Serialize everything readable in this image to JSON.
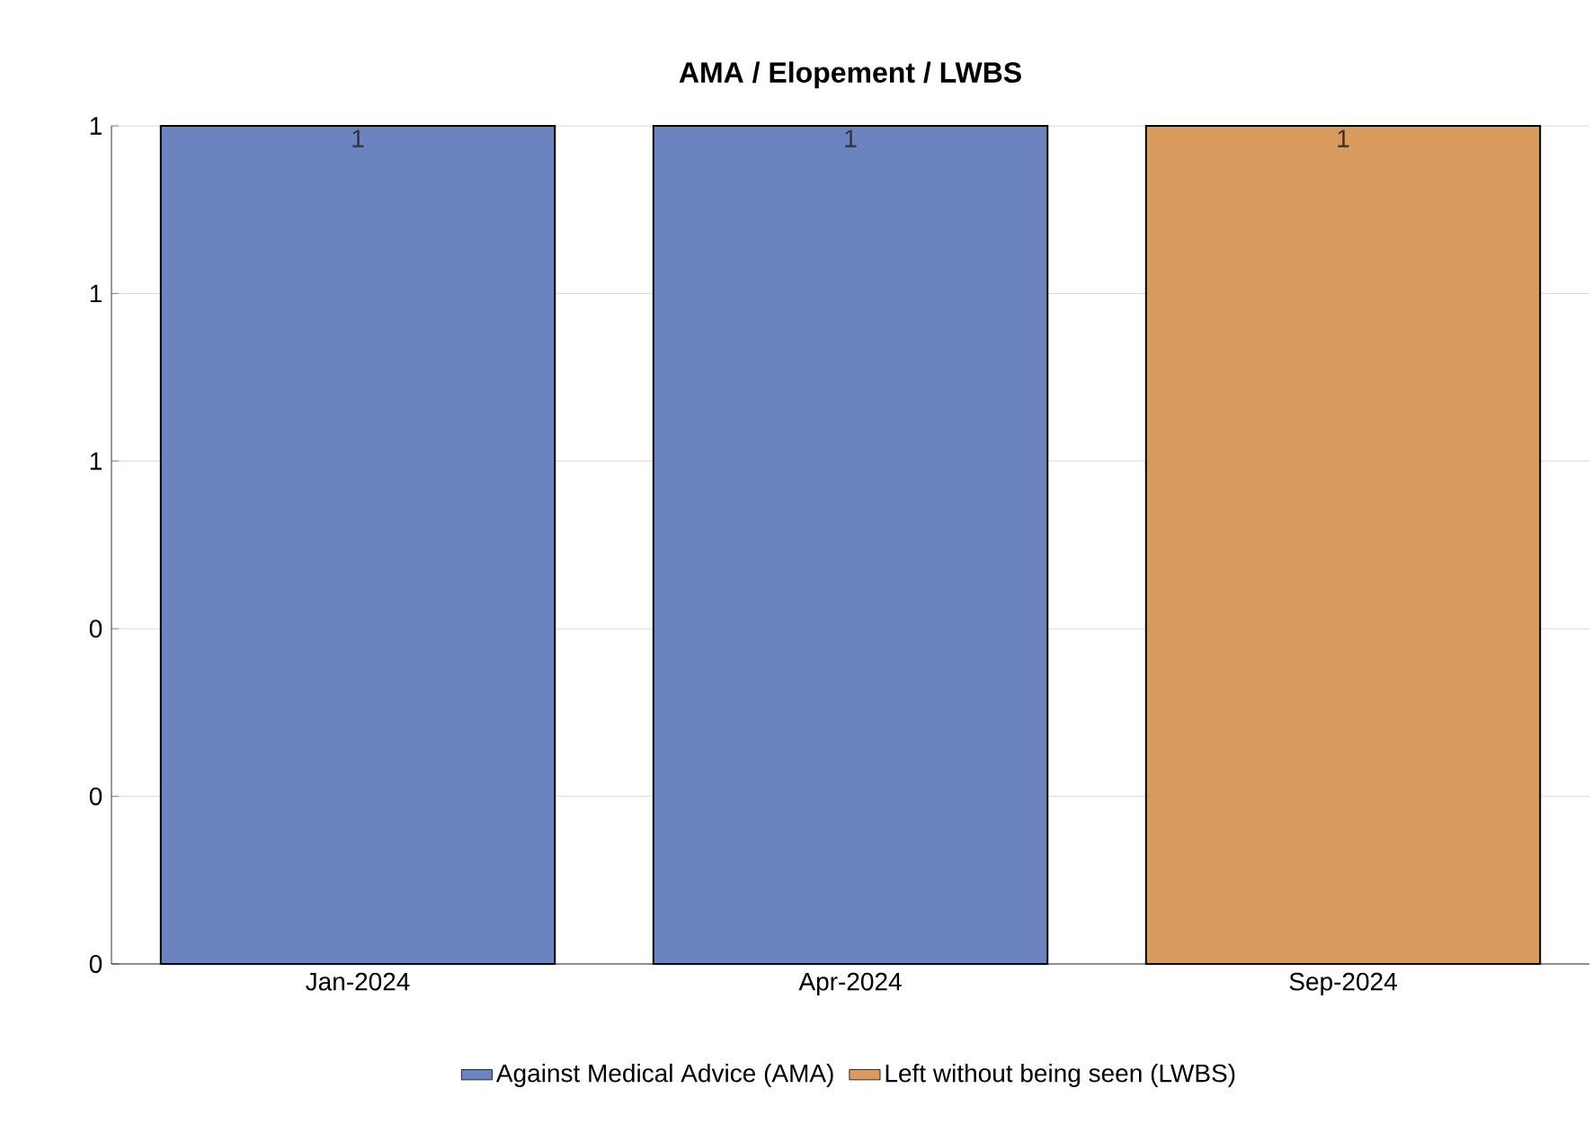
{
  "chart_data": {
    "type": "bar",
    "title": "AMA / Elopement / LWBS",
    "stacked": true,
    "categories": [
      "Jan-2024",
      "Apr-2024",
      "Sep-2024"
    ],
    "series": [
      {
        "name": "Against Medical Advice (AMA)",
        "color": "#6b84c0",
        "values": [
          1,
          1,
          null
        ],
        "value_labels": [
          "1",
          "1",
          null
        ]
      },
      {
        "name": "Left without being seen (LWBS)",
        "color": "#d99a5e",
        "values": [
          null,
          null,
          1
        ],
        "value_labels": [
          null,
          null,
          "1"
        ]
      }
    ],
    "ylim": [
      0,
      1
    ],
    "yticks": [
      {
        "value": 0,
        "label": "0"
      },
      {
        "value": 0.2,
        "label": "0"
      },
      {
        "value": 0.4,
        "label": "0"
      },
      {
        "value": 0.6,
        "label": "1"
      },
      {
        "value": 0.8,
        "label": "1"
      },
      {
        "value": 1,
        "label": "1"
      }
    ],
    "grid": "y",
    "legend": "bottom"
  }
}
